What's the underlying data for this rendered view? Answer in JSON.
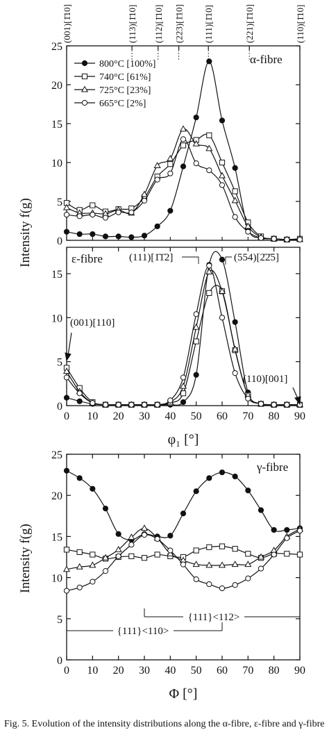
{
  "chart_data": [
    {
      "type": "line",
      "fibre_label": "α-fibre",
      "ylabel": "",
      "xlabel": "",
      "ylim": [
        0,
        25
      ],
      "xlim": [
        0,
        90
      ],
      "yticks": [
        0,
        5,
        10,
        15,
        20,
        25
      ],
      "orientation_labels": [
        {
          "x": 0,
          "text": "(001)[1̄10]"
        },
        {
          "x": 25.2,
          "text": "(113)[1̄10]"
        },
        {
          "x": 35.3,
          "text": "(112)[1̄10]"
        },
        {
          "x": 43.3,
          "text": "(223)[1̄10]"
        },
        {
          "x": 54.7,
          "text": "(111)[1̄10]"
        },
        {
          "x": 70.5,
          "text": "(221)[1̄10]"
        },
        {
          "x": 90,
          "text": "(110)[1̄10]"
        }
      ],
      "series": [
        {
          "name": "800°C [100%]",
          "marker": "filled-circle",
          "x": [
            0,
            5,
            10,
            15,
            20,
            25,
            30,
            35,
            40,
            45,
            50,
            55,
            60,
            65,
            70,
            75,
            80,
            85,
            90
          ],
          "y": [
            1.1,
            0.8,
            0.8,
            0.5,
            0.5,
            0.4,
            0.6,
            1.8,
            3.8,
            9.5,
            15.8,
            23.0,
            15.4,
            9.3,
            1.5,
            0.3,
            0.2,
            0.1,
            0.1
          ]
        },
        {
          "name": "740°C [61%]",
          "marker": "open-square",
          "x": [
            0,
            5,
            10,
            15,
            20,
            25,
            30,
            35,
            40,
            45,
            50,
            55,
            60,
            65,
            70,
            75,
            80,
            85,
            90
          ],
          "y": [
            4.8,
            3.9,
            4.5,
            3.7,
            4.0,
            4.1,
            5.5,
            8.2,
            9.8,
            12.2,
            12.9,
            13.5,
            10.0,
            6.3,
            2.3,
            0.5,
            0.2,
            0.1,
            0.2
          ]
        },
        {
          "name": "725°C [23%]",
          "marker": "open-triangle",
          "x": [
            0,
            5,
            10,
            15,
            20,
            25,
            30,
            35,
            40,
            45,
            50,
            55,
            60,
            65,
            70,
            75,
            80,
            85,
            90
          ],
          "y": [
            4.2,
            3.5,
            3.5,
            3.4,
            3.9,
            3.5,
            5.9,
            9.6,
            10.5,
            14.3,
            12.4,
            11.8,
            8.3,
            5.1,
            1.8,
            0.4,
            0.2,
            0.1,
            0.1
          ]
        },
        {
          "name": "665°C [2%]",
          "marker": "open-circle",
          "x": [
            0,
            5,
            10,
            15,
            20,
            25,
            30,
            35,
            40,
            45,
            50,
            55,
            60,
            65,
            70,
            75,
            80,
            85,
            90
          ],
          "y": [
            3.3,
            3.1,
            3.3,
            2.9,
            3.6,
            3.6,
            5.1,
            7.8,
            8.6,
            13.0,
            9.9,
            9.0,
            7.1,
            3.0,
            1.1,
            0.3,
            0.2,
            0.1,
            0.1
          ]
        }
      ]
    },
    {
      "type": "line",
      "fibre_label": "ε-fibre",
      "ylabel": "Intensity f(g)",
      "xlabel": "φ₁ [°]",
      "ylim": [
        0,
        18
      ],
      "xlim": [
        0,
        90
      ],
      "yticks": [
        0,
        5,
        10,
        15
      ],
      "xticks": [
        0,
        10,
        20,
        30,
        40,
        50,
        60,
        70,
        80,
        90
      ],
      "annotations": [
        {
          "text": "(111)[1̄1̄2]",
          "x": 55
        },
        {
          "text": "(554)[2̄2̄5]",
          "x": 60
        },
        {
          "text": "(001)[110]",
          "x": 0
        },
        {
          "text": "(110)[001]",
          "x": 90
        }
      ],
      "series": [
        {
          "name": "800°C [100%]",
          "marker": "filled-circle",
          "x": [
            0,
            5,
            10,
            15,
            20,
            25,
            30,
            35,
            40,
            45,
            50,
            55,
            60,
            65,
            70,
            75,
            80,
            85,
            90
          ],
          "y": [
            0.9,
            0.5,
            0.2,
            0.1,
            0.1,
            0.1,
            0.1,
            0.1,
            0.1,
            0.4,
            3.5,
            16.0,
            16.6,
            9.5,
            1.5,
            0.2,
            0.1,
            0.1,
            0.1
          ]
        },
        {
          "name": "740°C [61%]",
          "marker": "open-square",
          "x": [
            0,
            5,
            10,
            15,
            20,
            25,
            30,
            35,
            40,
            45,
            50,
            55,
            60,
            65,
            70,
            75,
            80,
            85,
            90
          ],
          "y": [
            4.3,
            2.0,
            0.4,
            0.1,
            0.1,
            0.1,
            0.1,
            0.1,
            0.3,
            1.4,
            7.3,
            12.8,
            13.0,
            6.3,
            1.2,
            0.2,
            0.1,
            0.1,
            0.1
          ]
        },
        {
          "name": "725°C [23%]",
          "marker": "open-triangle",
          "x": [
            0,
            5,
            10,
            15,
            20,
            25,
            30,
            35,
            40,
            45,
            50,
            55,
            60,
            65,
            70,
            75,
            80,
            85,
            90
          ],
          "y": [
            3.9,
            1.6,
            0.3,
            0.1,
            0.1,
            0.1,
            0.1,
            0.1,
            0.4,
            2.2,
            8.9,
            15.2,
            13.0,
            6.4,
            1.2,
            0.2,
            0.1,
            0.1,
            0.1
          ]
        },
        {
          "name": "665°C [2%]",
          "marker": "open-circle",
          "x": [
            0,
            5,
            10,
            15,
            20,
            25,
            30,
            35,
            40,
            45,
            50,
            55,
            60,
            65,
            70,
            75,
            80,
            85,
            90
          ],
          "y": [
            3.2,
            1.4,
            0.3,
            0.1,
            0.1,
            0.1,
            0.1,
            0.1,
            0.6,
            3.2,
            10.4,
            15.9,
            10.0,
            3.7,
            0.8,
            0.2,
            0.1,
            0.1,
            0.1
          ]
        }
      ]
    },
    {
      "type": "line",
      "fibre_label": "γ-fibre",
      "ylabel": "Intensity f(g)",
      "xlabel": "Φ [°]",
      "ylim": [
        0,
        25
      ],
      "xlim": [
        0,
        90
      ],
      "yticks": [
        0,
        5,
        10,
        15,
        20,
        25
      ],
      "xticks": [
        0,
        10,
        20,
        30,
        40,
        50,
        60,
        70,
        80,
        90
      ],
      "brackets": [
        {
          "text": "{111}<112>",
          "x_start": 30,
          "x_end": 90
        },
        {
          "text": "{111}<110>",
          "x_start": 0,
          "x_end": 60
        }
      ],
      "series": [
        {
          "name": "800°C [100%]",
          "marker": "filled-circle",
          "x": [
            0,
            5,
            10,
            15,
            20,
            25,
            30,
            35,
            40,
            45,
            50,
            55,
            60,
            65,
            70,
            75,
            80,
            85,
            90
          ],
          "y": [
            23.0,
            22.1,
            20.8,
            18.4,
            15.3,
            14.6,
            15.3,
            15.0,
            15.1,
            17.8,
            20.5,
            22.1,
            22.8,
            22.3,
            20.6,
            18.2,
            15.8,
            15.8,
            16.0
          ]
        },
        {
          "name": "740°C [61%]",
          "marker": "open-square",
          "x": [
            0,
            5,
            10,
            15,
            20,
            25,
            30,
            35,
            40,
            45,
            50,
            55,
            60,
            65,
            70,
            75,
            80,
            85,
            90
          ],
          "y": [
            13.4,
            13.1,
            12.8,
            12.3,
            12.5,
            12.6,
            12.4,
            12.8,
            12.6,
            12.5,
            13.3,
            13.7,
            13.8,
            13.5,
            12.9,
            12.4,
            12.9,
            12.9,
            12.8
          ]
        },
        {
          "name": "725°C [23%]",
          "marker": "open-triangle",
          "x": [
            0,
            5,
            10,
            15,
            20,
            25,
            30,
            35,
            40,
            45,
            50,
            55,
            60,
            65,
            70,
            75,
            80,
            85,
            90
          ],
          "y": [
            11.0,
            11.3,
            11.5,
            12.4,
            13.4,
            14.9,
            16.0,
            14.8,
            12.9,
            12.1,
            11.6,
            11.5,
            11.5,
            11.6,
            11.6,
            12.5,
            13.3,
            15.0,
            15.9
          ]
        },
        {
          "name": "665°C [2%]",
          "marker": "open-circle",
          "x": [
            0,
            5,
            10,
            15,
            20,
            25,
            30,
            35,
            40,
            45,
            50,
            55,
            60,
            65,
            70,
            75,
            80,
            85,
            90
          ],
          "y": [
            8.4,
            8.8,
            9.5,
            10.8,
            12.6,
            14.0,
            15.2,
            14.7,
            13.3,
            11.6,
            9.8,
            9.2,
            8.7,
            9.1,
            9.9,
            11.1,
            12.8,
            14.8,
            15.7
          ]
        }
      ]
    }
  ],
  "caption": "Fig. 5.   Evolution of the intensity distributions along the α-fibre, ε-fibre and γ-fibre"
}
